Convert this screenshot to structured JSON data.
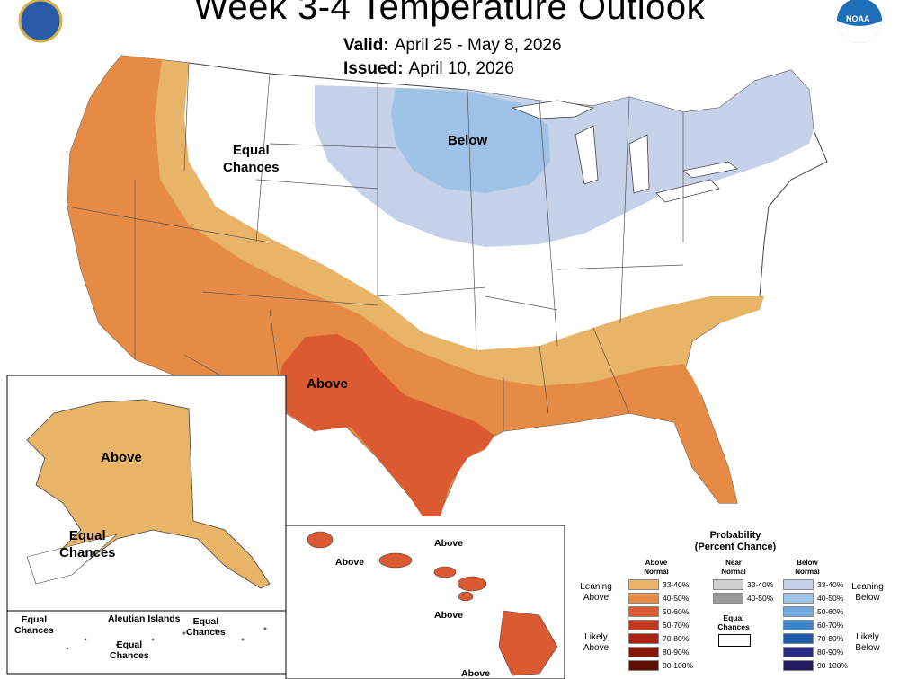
{
  "header": {
    "title": "Week 3-4 Temperature Outlook",
    "valid_label": "Valid:",
    "valid_value": "April 25 - May 8, 2026",
    "issued_label": "Issued:",
    "issued_value": "April 10, 2026"
  },
  "logos": {
    "noaa_text": "NOAA"
  },
  "map_labels": {
    "conus_equal": "Equal\nChances",
    "conus_below": "Below",
    "conus_above": "Above",
    "alaska_above": "Above",
    "alaska_equal": "Equal\nChances",
    "aleutian_title": "Aleutian Islands",
    "aleutian_equal_1": "Equal\nChances",
    "aleutian_equal_2": "Equal\nChances",
    "aleutian_equal_3": "Equal\nChances",
    "hawaii_above_1": "Above",
    "hawaii_above_2": "Above",
    "hawaii_above_3": "Above",
    "hawaii_above_4": "Above"
  },
  "legend": {
    "title_line1": "Probability",
    "title_line2": "(Percent Chance)",
    "above_head": "Above\nNormal",
    "near_head": "Near\nNormal",
    "below_head": "Below\nNormal",
    "leaning_above": "Leaning\nAbove",
    "likely_above": "Likely\nAbove",
    "leaning_below": "Leaning\nBelow",
    "likely_below": "Likely\nBelow",
    "equal_chances": "Equal\nChances",
    "above": [
      {
        "label": "33-40%",
        "color": "#e8b468"
      },
      {
        "label": "40-50%",
        "color": "#e58b45"
      },
      {
        "label": "50-60%",
        "color": "#dc5a32"
      },
      {
        "label": "60-70%",
        "color": "#c8371c"
      },
      {
        "label": "70-80%",
        "color": "#a8220f"
      },
      {
        "label": "80-90%",
        "color": "#861606"
      },
      {
        "label": "90-100%",
        "color": "#5e0f04"
      }
    ],
    "near": [
      {
        "label": "33-40%",
        "color": "#cfcfcf"
      },
      {
        "label": "40-50%",
        "color": "#9a9a9a"
      }
    ],
    "below": [
      {
        "label": "33-40%",
        "color": "#c5d2ea"
      },
      {
        "label": "40-50%",
        "color": "#9fc3e6"
      },
      {
        "label": "50-60%",
        "color": "#6ea8dc"
      },
      {
        "label": "60-70%",
        "color": "#3a86c8"
      },
      {
        "label": "70-80%",
        "color": "#1e5aa8"
      },
      {
        "label": "80-90%",
        "color": "#2b2a85"
      },
      {
        "label": "90-100%",
        "color": "#221a5c"
      }
    ]
  },
  "colors": {
    "lean_above": "#e8b468",
    "above_40": "#e58b45",
    "above_50": "#dc5a32",
    "lean_below": "#c5d2ea",
    "below_40": "#9fc3e6"
  }
}
